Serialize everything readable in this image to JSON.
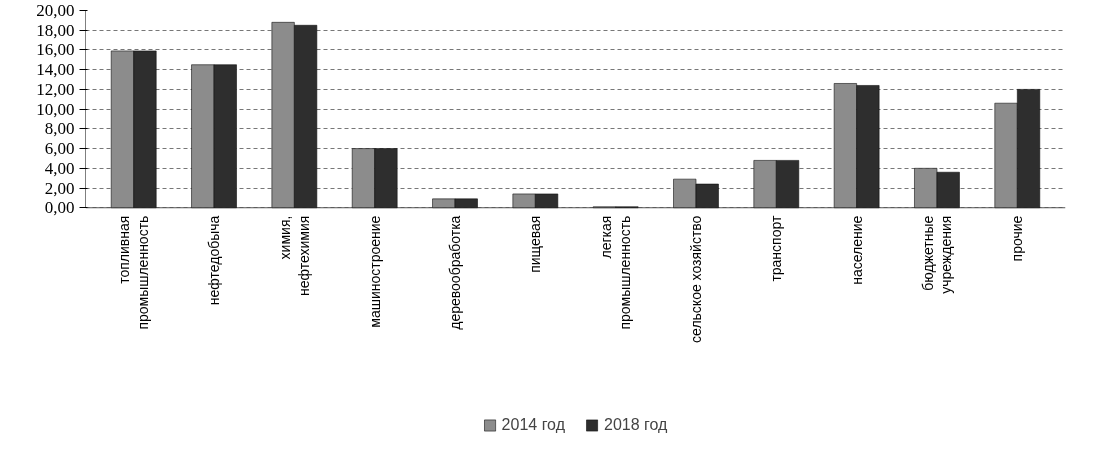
{
  "chart_data": {
    "type": "bar",
    "categories": [
      "топливная\nпромышленность",
      "нефтедобыча",
      "химия,\nнефтехимия",
      "машиностроение",
      "деревообработка",
      "пищевая",
      "легкая\nпромышленность",
      "сельское хозяйство",
      "транспорт",
      "население",
      "бюджетные\nучреждения",
      "прочие"
    ],
    "series": [
      {
        "name": "2014 год",
        "color": "#8c8c8c",
        "values": [
          15.9,
          14.5,
          18.8,
          6.0,
          0.9,
          1.4,
          0.1,
          2.9,
          4.8,
          12.6,
          4.0,
          10.6
        ]
      },
      {
        "name": "2018 год",
        "color": "#2e2e2e",
        "values": [
          15.9,
          14.5,
          18.5,
          6.0,
          0.9,
          1.4,
          0.1,
          2.4,
          4.8,
          12.4,
          3.6,
          12.0
        ]
      }
    ],
    "ylim": [
      0,
      20
    ],
    "yticks": [
      {
        "value": 0,
        "label": "0,00"
      },
      {
        "value": 2,
        "label": "2,00"
      },
      {
        "value": 4,
        "label": "4,00"
      },
      {
        "value": 6,
        "label": "6,00"
      },
      {
        "value": 8,
        "label": "8,00"
      },
      {
        "value": 10,
        "label": "10,00"
      },
      {
        "value": 12,
        "label": "12,00"
      },
      {
        "value": 14,
        "label": "14,00"
      },
      {
        "value": 16,
        "label": "16,00"
      },
      {
        "value": 18,
        "label": "18,00"
      },
      {
        "value": 20,
        "label": "20,00"
      }
    ],
    "grid": "y",
    "legend": "bottom"
  }
}
